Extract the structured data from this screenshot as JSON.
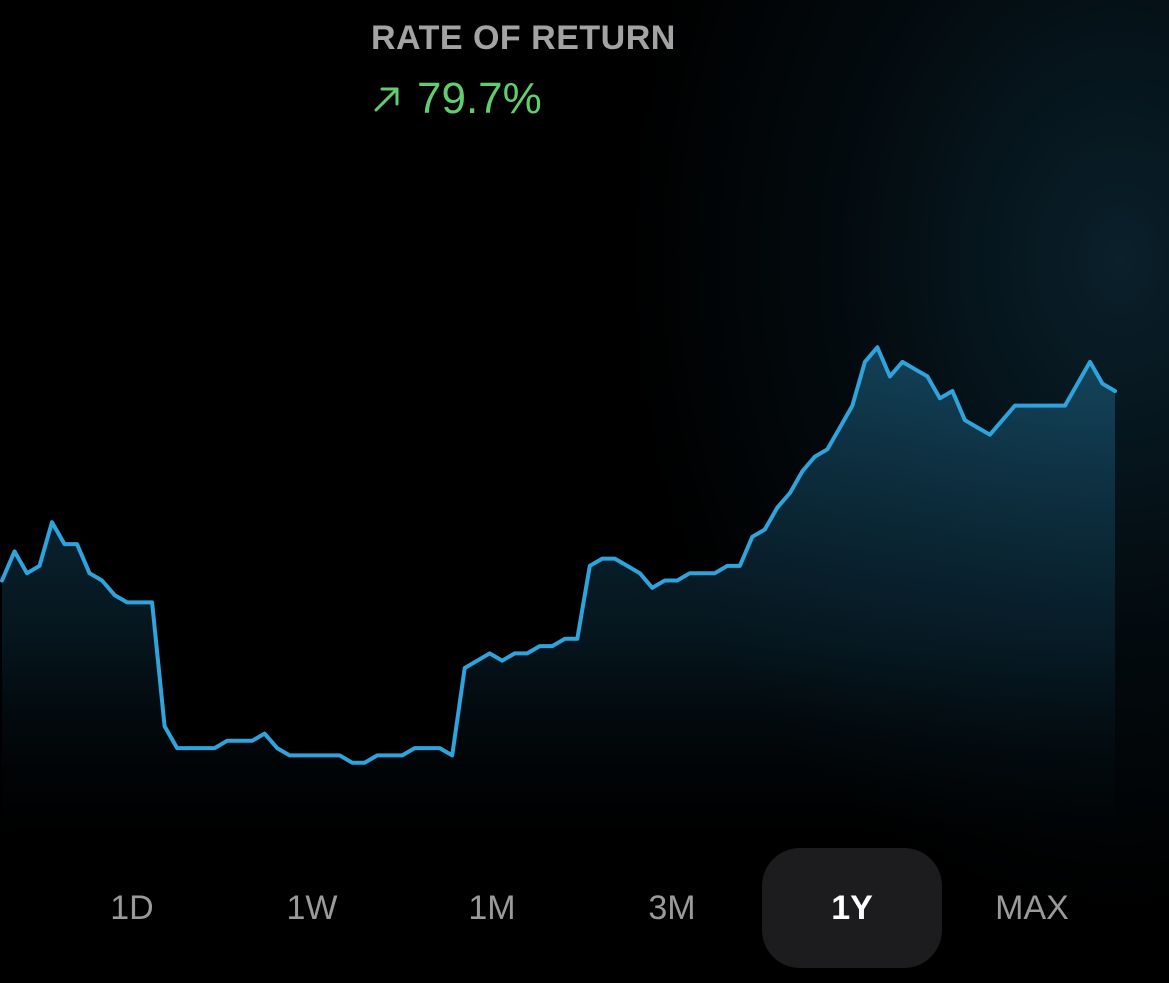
{
  "header": {
    "label": "RATE OF RETURN",
    "value": "79.7%",
    "trend_icon": "arrow-up-right-icon",
    "value_color": "#5fcf6e"
  },
  "range_selector": {
    "options": [
      "1D",
      "1W",
      "1M",
      "3M",
      "1Y",
      "MAX"
    ],
    "selected": "1Y"
  },
  "chart_data": {
    "type": "area",
    "line_color": "#2fa3dc",
    "values": [
      50,
      54,
      51,
      52,
      58,
      55,
      55,
      51,
      50,
      48,
      47,
      47,
      47,
      30,
      27,
      27,
      27,
      27,
      28,
      28,
      28,
      29,
      27,
      26,
      26,
      26,
      26,
      26,
      25,
      25,
      26,
      26,
      26,
      27,
      27,
      27,
      26,
      38,
      39,
      40,
      39,
      40,
      40,
      41,
      41,
      42,
      42,
      52,
      53,
      53,
      52,
      51,
      49,
      50,
      50,
      51,
      51,
      51,
      52,
      52,
      56,
      57,
      60,
      62,
      65,
      67,
      68,
      71,
      74,
      80,
      82,
      78,
      80,
      79,
      78,
      75,
      76,
      72,
      71,
      70,
      72,
      74,
      74,
      74,
      74,
      74,
      77,
      80,
      77,
      76
    ]
  }
}
